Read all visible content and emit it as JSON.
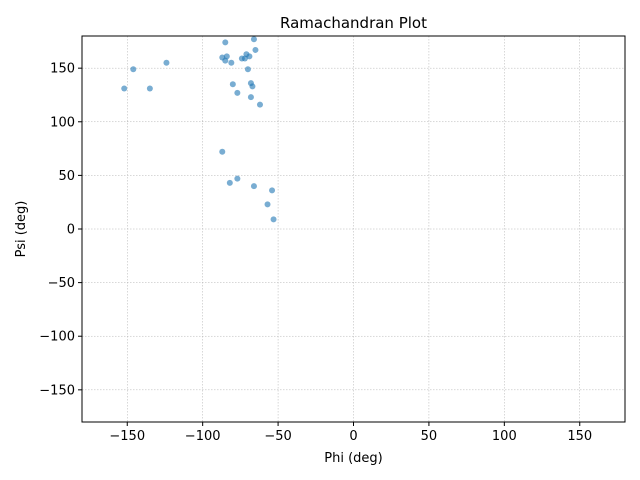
{
  "chart_data": {
    "type": "scatter",
    "title": "Ramachandran Plot",
    "xlabel": "Phi (deg)",
    "ylabel": "Psi (deg)",
    "xlim": [
      -180,
      180
    ],
    "ylim": [
      -180,
      180
    ],
    "xticks": [
      -150,
      -100,
      -50,
      0,
      50,
      100,
      150
    ],
    "yticks": [
      -150,
      -100,
      -50,
      0,
      50,
      100,
      150
    ],
    "xtick_labels": [
      "−150",
      "−100",
      "−50",
      "0",
      "50",
      "100",
      "150"
    ],
    "ytick_labels": [
      "−150",
      "−100",
      "−50",
      "0",
      "50",
      "100",
      "150"
    ],
    "grid": true,
    "marker_color": "#1f77b4",
    "points": [
      {
        "x": -152,
        "y": 131
      },
      {
        "x": -146,
        "y": 149
      },
      {
        "x": -135,
        "y": 131
      },
      {
        "x": -124,
        "y": 155
      },
      {
        "x": -87,
        "y": 160
      },
      {
        "x": -85,
        "y": 174
      },
      {
        "x": -85,
        "y": 157
      },
      {
        "x": -84,
        "y": 161
      },
      {
        "x": -81,
        "y": 155
      },
      {
        "x": -80,
        "y": 135
      },
      {
        "x": -77,
        "y": 127
      },
      {
        "x": -74,
        "y": 159
      },
      {
        "x": -72,
        "y": 159
      },
      {
        "x": -71,
        "y": 163
      },
      {
        "x": -70,
        "y": 149
      },
      {
        "x": -69,
        "y": 161
      },
      {
        "x": -68,
        "y": 136
      },
      {
        "x": -68,
        "y": 123
      },
      {
        "x": -67,
        "y": 133
      },
      {
        "x": -66,
        "y": 177
      },
      {
        "x": -65,
        "y": 167
      },
      {
        "x": -62,
        "y": 116
      },
      {
        "x": -87,
        "y": 72
      },
      {
        "x": -82,
        "y": 43
      },
      {
        "x": -77,
        "y": 47
      },
      {
        "x": -66,
        "y": 40
      },
      {
        "x": -57,
        "y": 23
      },
      {
        "x": -54,
        "y": 36
      },
      {
        "x": -53,
        "y": 9
      }
    ]
  }
}
